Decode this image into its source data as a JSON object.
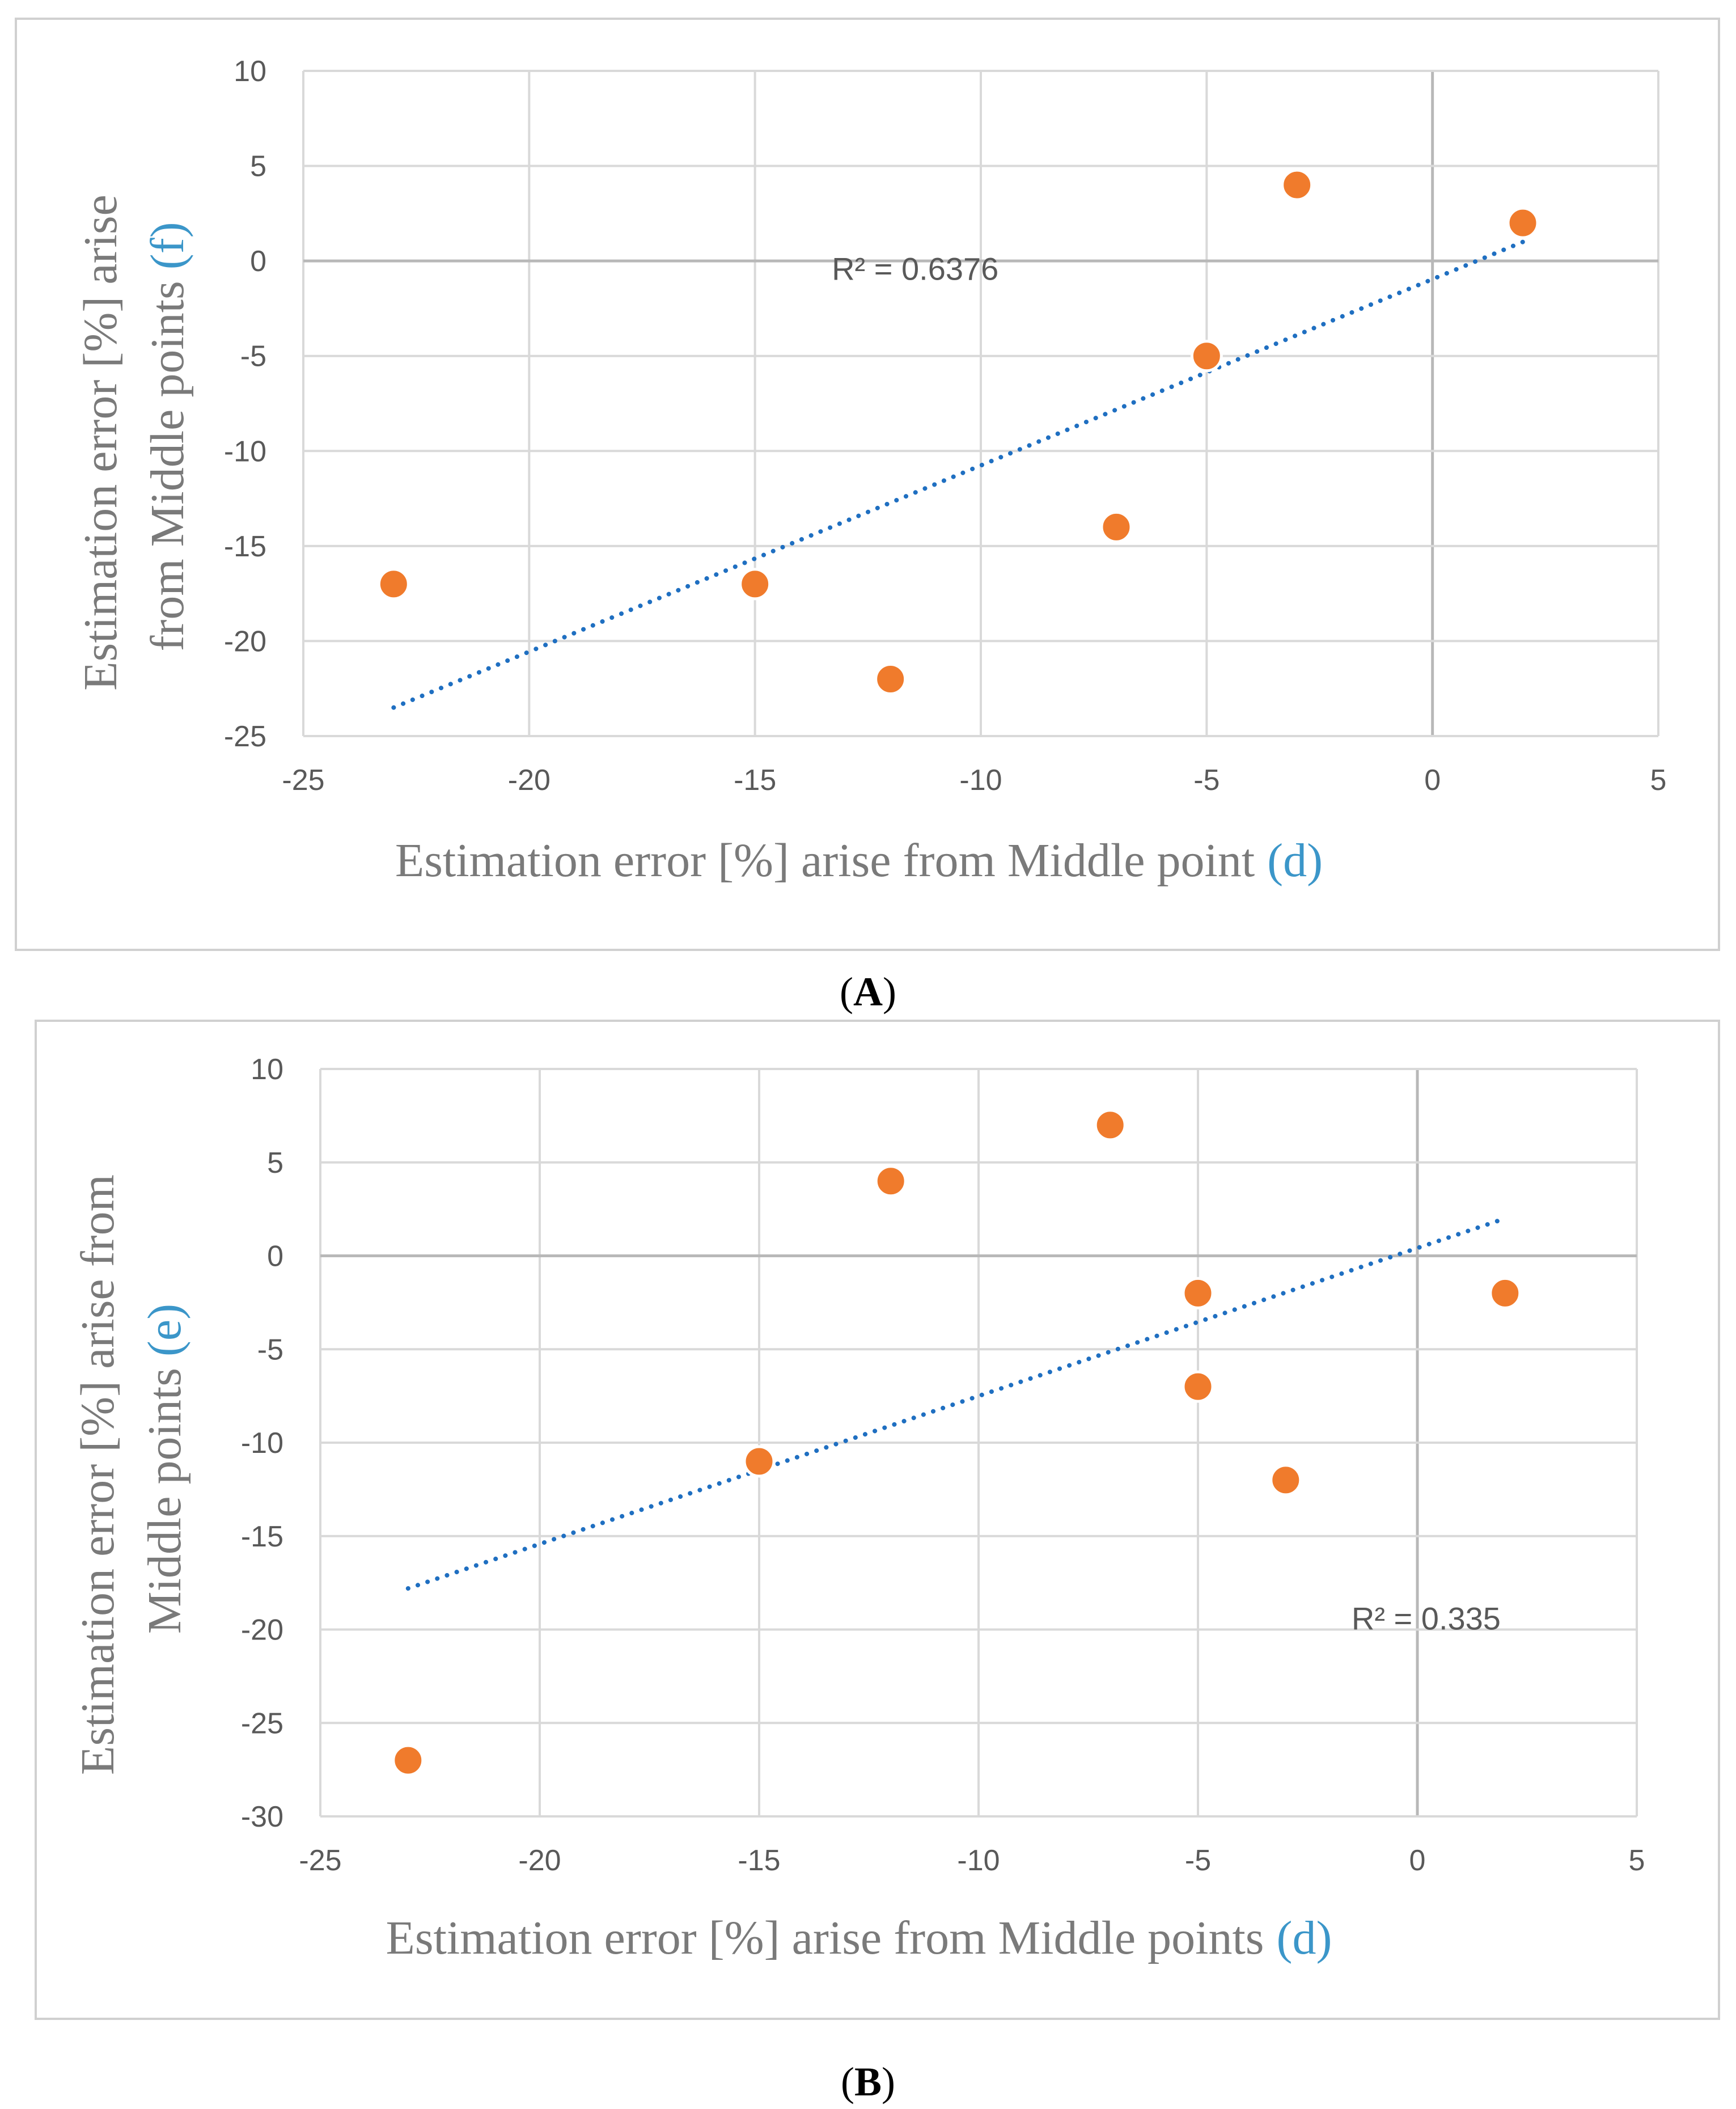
{
  "chart_data": [
    {
      "type": "scatter",
      "panel_label": "A",
      "xlabel": "Estimation error [%]  arise from Middle point",
      "xlabel_highlight": "(d)",
      "ylabel_line1": "Estimation error [%]  arise",
      "ylabel_line2": "from Middle points",
      "ylabel_highlight": "(f)",
      "xlim": [
        -25,
        5
      ],
      "ylim": [
        -25,
        10
      ],
      "xticks": [
        -25,
        -20,
        -15,
        -10,
        -5,
        0,
        5
      ],
      "yticks": [
        10,
        5,
        0,
        -5,
        -10,
        -15,
        -20,
        -25
      ],
      "grid": true,
      "series": [
        {
          "name": "points",
          "x": [
            -23,
            -15,
            -12,
            -7,
            -5,
            -3,
            2
          ],
          "y": [
            -17,
            -17,
            -22,
            -14,
            -5,
            4,
            2
          ]
        }
      ],
      "trendline": {
        "type": "linear",
        "x": [
          -23,
          2
        ],
        "y": [
          -23.5,
          1.0
        ]
      },
      "annotations": [
        {
          "text": "R² = 0.6376",
          "x": -13.3,
          "y": -1
        }
      ],
      "colors": {
        "points": "#f07b2c",
        "trend": "#1f6fc1",
        "highlight": "#3b96c9"
      }
    },
    {
      "type": "scatter",
      "panel_label": "B",
      "xlabel": "Estimation error [%] arise from Middle points",
      "xlabel_highlight": "(d)",
      "ylabel_line1": "Estimation error [%] arise from",
      "ylabel_line2": "Middle points",
      "ylabel_highlight": "(e)",
      "xlim": [
        -25,
        5
      ],
      "ylim": [
        -30,
        10
      ],
      "xticks": [
        -25,
        -20,
        -15,
        -10,
        -5,
        0,
        5
      ],
      "yticks": [
        10,
        5,
        0,
        -5,
        -10,
        -15,
        -20,
        -25,
        -30
      ],
      "grid": true,
      "series": [
        {
          "name": "points",
          "x": [
            -23,
            -15,
            -12,
            -7,
            -5,
            -5,
            -3,
            2
          ],
          "y": [
            -27,
            -11,
            4,
            7,
            -2,
            -7,
            -12,
            -2
          ]
        }
      ],
      "trendline": {
        "type": "linear",
        "x": [
          -23,
          2
        ],
        "y": [
          -17.8,
          2.0
        ]
      },
      "annotations": [
        {
          "text": "R² = 0.335",
          "x": -1.5,
          "y": -20
        }
      ],
      "colors": {
        "points": "#f07b2c",
        "trend": "#1f6fc1",
        "highlight": "#3b96c9"
      }
    }
  ]
}
